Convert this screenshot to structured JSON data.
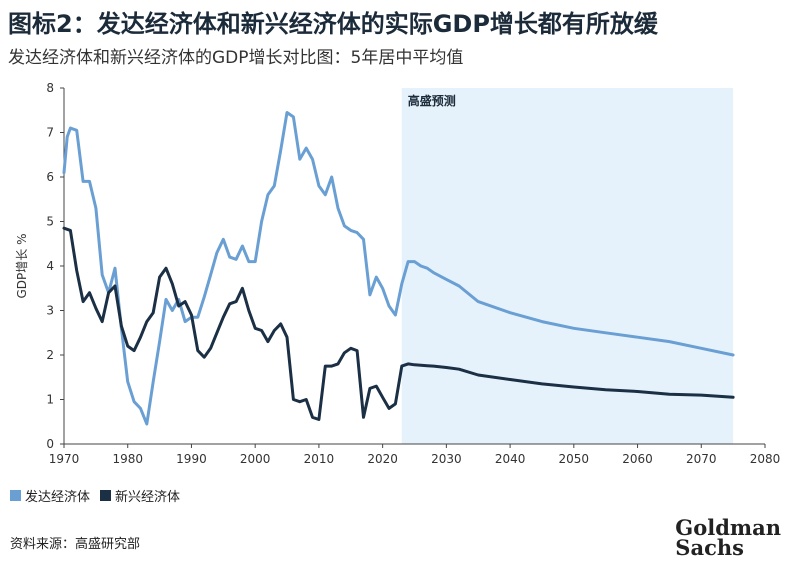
{
  "header": {
    "title": "图标2：发达经济体和新兴经济体的实际GDP增长都有所放缓",
    "subtitle": "发达经济体和新兴经济体的GDP增长对比图：5年居中平均值"
  },
  "footer": {
    "source": "资料来源：高盛研究部",
    "logo_line1": "Goldman",
    "logo_line2": "Sachs"
  },
  "colors": {
    "developed": "#6a9fd4",
    "emerging": "#1b2f45",
    "forecast_shade": "#e6f2fb",
    "axis": "#444444"
  },
  "chart_data": {
    "type": "line",
    "ylabel": "GDP增长 %",
    "xlabel": "",
    "xlim": [
      1970,
      2080
    ],
    "ylim": [
      0,
      8
    ],
    "x_ticks": [
      1970,
      1980,
      1990,
      2000,
      2010,
      2020,
      2030,
      2040,
      2050,
      2060,
      2070,
      2080
    ],
    "y_ticks": [
      0,
      1,
      2,
      3,
      4,
      5,
      6,
      7,
      8
    ],
    "grid": false,
    "legend_position": "bottom-left",
    "forecast_region": {
      "label": "高盛预测",
      "start": 2023,
      "end": 2075
    },
    "series": [
      {
        "name": "发达经济体",
        "color": "#6a9fd4",
        "x": [
          1970,
          1970.5,
          1971,
          1972,
          1973,
          1974,
          1975,
          1976,
          1977,
          1978,
          1979,
          1980,
          1981,
          1982,
          1983,
          1984,
          1985,
          1986,
          1987,
          1988,
          1989,
          1990,
          1991,
          1992,
          1993,
          1994,
          1995,
          1996,
          1997,
          1998,
          1999,
          2000,
          2001,
          2002,
          2003,
          2004,
          2005,
          2006,
          2007,
          2008,
          2009,
          2010,
          2011,
          2012,
          2013,
          2014,
          2015,
          2016,
          2017,
          2018,
          2019,
          2020,
          2021,
          2022,
          2023,
          2024,
          2025,
          2026,
          2027,
          2028,
          2030,
          2032,
          2035,
          2040,
          2045,
          2050,
          2055,
          2060,
          2065,
          2070,
          2075
        ],
        "values": [
          6.1,
          6.9,
          7.1,
          7.05,
          5.9,
          5.9,
          5.3,
          3.8,
          3.4,
          3.95,
          2.6,
          1.4,
          0.95,
          0.8,
          0.45,
          1.4,
          2.3,
          3.25,
          3.0,
          3.25,
          2.75,
          2.85,
          2.85,
          3.3,
          3.8,
          4.3,
          4.6,
          4.2,
          4.15,
          4.45,
          4.1,
          4.1,
          5.0,
          5.6,
          5.8,
          6.6,
          7.45,
          7.35,
          6.4,
          6.65,
          6.4,
          5.8,
          5.6,
          6.0,
          5.3,
          4.9,
          4.8,
          4.75,
          4.6,
          3.35,
          3.75,
          3.5,
          3.1,
          2.9,
          3.6,
          4.1,
          4.1,
          4.0,
          3.95,
          3.85,
          3.7,
          3.55,
          3.2,
          2.95,
          2.75,
          2.6,
          2.5,
          2.4,
          2.3,
          2.15,
          2.0
        ]
      },
      {
        "name": "新兴经济体",
        "color": "#1b2f45",
        "x": [
          1970,
          1971,
          1972,
          1973,
          1974,
          1975,
          1976,
          1977,
          1978,
          1979,
          1980,
          1981,
          1982,
          1983,
          1984,
          1985,
          1986,
          1987,
          1988,
          1989,
          1990,
          1991,
          1992,
          1993,
          1994,
          1995,
          1996,
          1997,
          1998,
          1999,
          2000,
          2001,
          2002,
          2003,
          2004,
          2005,
          2006,
          2007,
          2008,
          2009,
          2010,
          2011,
          2012,
          2013,
          2014,
          2015,
          2016,
          2017,
          2018,
          2019,
          2020,
          2021,
          2022,
          2023,
          2024,
          2025,
          2026,
          2027,
          2028,
          2030,
          2032,
          2035,
          2040,
          2045,
          2050,
          2055,
          2060,
          2065,
          2070,
          2075
        ],
        "values": [
          4.85,
          4.8,
          3.9,
          3.2,
          3.4,
          3.05,
          2.75,
          3.4,
          3.55,
          2.65,
          2.2,
          2.1,
          2.4,
          2.75,
          2.95,
          3.75,
          3.95,
          3.6,
          3.1,
          3.2,
          2.9,
          2.1,
          1.95,
          2.15,
          2.5,
          2.85,
          3.15,
          3.2,
          3.5,
          3.0,
          2.6,
          2.55,
          2.3,
          2.55,
          2.7,
          2.4,
          1.0,
          0.95,
          1.0,
          0.6,
          0.55,
          1.75,
          1.75,
          1.8,
          2.05,
          2.15,
          2.1,
          0.6,
          1.25,
          1.3,
          1.05,
          0.8,
          0.9,
          1.75,
          1.8,
          1.78,
          1.77,
          1.76,
          1.75,
          1.72,
          1.68,
          1.55,
          1.45,
          1.35,
          1.28,
          1.22,
          1.18,
          1.12,
          1.1,
          1.05
        ]
      }
    ]
  }
}
